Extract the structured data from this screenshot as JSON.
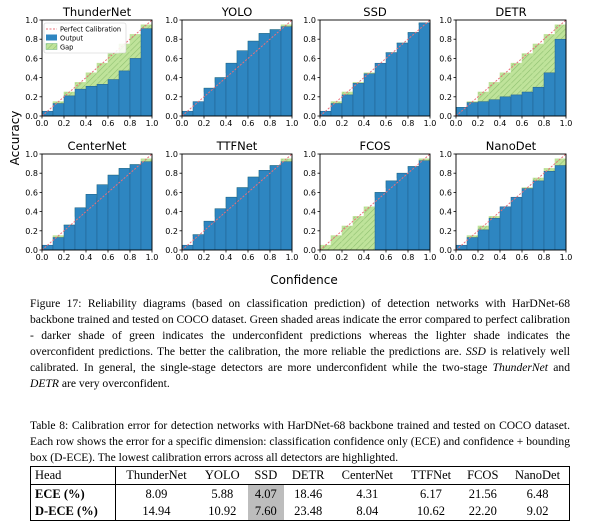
{
  "figure": {
    "ylabel": "Accuracy",
    "xlabel": "Confidence",
    "legend": {
      "perfect": "Perfect Calibration",
      "output": "Output",
      "gap": "Gap"
    },
    "colors": {
      "output": "#2e86c1",
      "perfect": "#e8707a",
      "gap_dark": "#6cb486",
      "gap_light": "#bfe39a"
    }
  },
  "chart_data": [
    {
      "type": "bar",
      "title": "ThunderNet",
      "xlabel": "",
      "ylabel": "",
      "xlim": [
        0,
        1
      ],
      "ylim": [
        0,
        1
      ],
      "xticks": [
        "0.0",
        "0.2",
        "0.4",
        "0.6",
        "0.8",
        "1.0"
      ],
      "yticks": [
        "0.0",
        "0.2",
        "0.4",
        "0.6",
        "0.8",
        "1.0"
      ],
      "bin_width": 0.1,
      "bins": [
        0.05,
        0.15,
        0.25,
        0.35,
        0.45,
        0.55,
        0.65,
        0.75,
        0.85,
        0.95
      ],
      "output": [
        0.05,
        0.13,
        0.21,
        0.28,
        0.31,
        0.33,
        0.38,
        0.47,
        0.6,
        0.91
      ]
    },
    {
      "type": "bar",
      "title": "YOLO",
      "xlabel": "",
      "ylabel": "",
      "xlim": [
        0,
        1
      ],
      "ylim": [
        0,
        1
      ],
      "xticks": [
        "0.0",
        "0.2",
        "0.4",
        "0.6",
        "0.8",
        "1.0"
      ],
      "yticks": [
        "0.0",
        "0.2",
        "0.4",
        "0.6",
        "0.8",
        "1.0"
      ],
      "bin_width": 0.1,
      "bins": [
        0.05,
        0.15,
        0.25,
        0.35,
        0.45,
        0.55,
        0.65,
        0.75,
        0.85,
        0.95
      ],
      "output": [
        0.05,
        0.15,
        0.29,
        0.4,
        0.55,
        0.68,
        0.78,
        0.86,
        0.9,
        0.93
      ]
    },
    {
      "type": "bar",
      "title": "SSD",
      "xlabel": "",
      "ylabel": "",
      "xlim": [
        0,
        1
      ],
      "ylim": [
        0,
        1
      ],
      "xticks": [
        "0.0",
        "0.2",
        "0.4",
        "0.6",
        "0.8",
        "1.0"
      ],
      "yticks": [
        "0.0",
        "0.2",
        "0.4",
        "0.6",
        "0.8",
        "1.0"
      ],
      "bin_width": 0.1,
      "bins": [
        0.05,
        0.15,
        0.25,
        0.35,
        0.45,
        0.55,
        0.65,
        0.75,
        0.85,
        0.95
      ],
      "output": [
        0.05,
        0.13,
        0.22,
        0.34,
        0.44,
        0.55,
        0.66,
        0.76,
        0.87,
        0.97
      ]
    },
    {
      "type": "bar",
      "title": "DETR",
      "xlabel": "",
      "ylabel": "",
      "xlim": [
        0,
        1
      ],
      "ylim": [
        0,
        1
      ],
      "xticks": [
        "0.0",
        "0.2",
        "0.4",
        "0.6",
        "0.8",
        "1.0"
      ],
      "yticks": [
        "0.0",
        "0.2",
        "0.4",
        "0.6",
        "0.8",
        "1.0"
      ],
      "bin_width": 0.1,
      "bins": [
        0.05,
        0.15,
        0.25,
        0.35,
        0.45,
        0.55,
        0.65,
        0.75,
        0.85,
        0.95
      ],
      "output": [
        0.09,
        0.14,
        0.15,
        0.17,
        0.2,
        0.22,
        0.25,
        0.3,
        0.45,
        0.8
      ]
    },
    {
      "type": "bar",
      "title": "CenterNet",
      "xlabel": "",
      "ylabel": "",
      "xlim": [
        0,
        1
      ],
      "ylim": [
        0,
        1
      ],
      "xticks": [
        "0.0",
        "0.2",
        "0.4",
        "0.6",
        "0.8",
        "1.0"
      ],
      "yticks": [
        "0.0",
        "0.2",
        "0.4",
        "0.6",
        "0.8",
        "1.0"
      ],
      "bin_width": 0.1,
      "bins": [
        0.05,
        0.15,
        0.25,
        0.35,
        0.45,
        0.55,
        0.65,
        0.75,
        0.85,
        0.95
      ],
      "output": [
        0.05,
        0.13,
        0.26,
        0.44,
        0.58,
        0.68,
        0.78,
        0.85,
        0.89,
        0.92
      ]
    },
    {
      "type": "bar",
      "title": "TTFNet",
      "xlabel": "",
      "ylabel": "",
      "xlim": [
        0,
        1
      ],
      "ylim": [
        0,
        1
      ],
      "xticks": [
        "0.0",
        "0.2",
        "0.4",
        "0.6",
        "0.8",
        "1.0"
      ],
      "yticks": [
        "0.0",
        "0.2",
        "0.4",
        "0.6",
        "0.8",
        "1.0"
      ],
      "bin_width": 0.1,
      "bins": [
        0.05,
        0.15,
        0.25,
        0.35,
        0.45,
        0.55,
        0.65,
        0.75,
        0.85,
        0.95
      ],
      "output": [
        0.05,
        0.16,
        0.3,
        0.43,
        0.55,
        0.65,
        0.76,
        0.83,
        0.88,
        0.92
      ]
    },
    {
      "type": "bar",
      "title": "FCOS",
      "xlabel": "",
      "ylabel": "",
      "xlim": [
        0,
        1
      ],
      "ylim": [
        0,
        1
      ],
      "xticks": [
        "0.0",
        "0.2",
        "0.4",
        "0.6",
        "0.8",
        "1.0"
      ],
      "yticks": [
        "0.0",
        "0.2",
        "0.4",
        "0.6",
        "0.8",
        "1.0"
      ],
      "bin_width": 0.1,
      "bins": [
        0.05,
        0.15,
        0.25,
        0.35,
        0.45,
        0.55,
        0.65,
        0.75,
        0.85,
        0.95
      ],
      "output": [
        0.0,
        0.0,
        0.0,
        0.0,
        0.0,
        0.6,
        0.72,
        0.8,
        0.87,
        0.93
      ]
    },
    {
      "type": "bar",
      "title": "NanoDet",
      "xlabel": "",
      "ylabel": "",
      "xlim": [
        0,
        1
      ],
      "ylim": [
        0,
        1
      ],
      "xticks": [
        "0.0",
        "0.2",
        "0.4",
        "0.6",
        "0.8",
        "1.0"
      ],
      "yticks": [
        "0.0",
        "0.2",
        "0.4",
        "0.6",
        "0.8",
        "1.0"
      ],
      "bin_width": 0.1,
      "bins": [
        0.05,
        0.15,
        0.25,
        0.35,
        0.45,
        0.55,
        0.65,
        0.75,
        0.85,
        0.95
      ],
      "output": [
        0.05,
        0.13,
        0.21,
        0.33,
        0.45,
        0.55,
        0.64,
        0.72,
        0.82,
        0.88
      ]
    }
  ],
  "figure_caption": {
    "text_1": "Figure 17: Reliability diagrams (based on classification prediction) of detection networks with HarDNet-68 backbone trained and tested on COCO dataset. Green shaded areas indicate the error compared to perfect calibration - darker shade of green indicates the underconfident predictions whereas the lighter shade indicates the overconfident predictions. The better the calibration, the more reliable the predictions are.",
    "italic_1": "SSD",
    "text_2": " is relatively well calibrated. In general, the single-stage detectors are more underconfident while the two-stage ",
    "italic_2": "ThunderNet",
    "text_3": " and ",
    "italic_3": "DETR",
    "text_4": " are very overconfident."
  },
  "table_caption": "Table 8: Calibration error for detection networks with HarDNet-68 backbone trained and tested on COCO dataset. Each row shows the error for a specific dimension: classification confidence only (ECE) and confidence + bounding box (D-ECE). The lowest calibration errors across all detectors are highlighted.",
  "table": {
    "headers": [
      "Head",
      "ThunderNet",
      "YOLO",
      "SSD",
      "DETR",
      "CenterNet",
      "TTFNet",
      "FCOS",
      "NanoDet"
    ],
    "rows": [
      {
        "label": "ECE (%)",
        "values": [
          "8.09",
          "5.88",
          "4.07",
          "18.46",
          "4.31",
          "6.17",
          "21.56",
          "6.48"
        ]
      },
      {
        "label": "D-ECE (%)",
        "values": [
          "14.94",
          "10.92",
          "7.60",
          "23.48",
          "8.04",
          "10.62",
          "22.20",
          "9.02"
        ]
      }
    ]
  }
}
